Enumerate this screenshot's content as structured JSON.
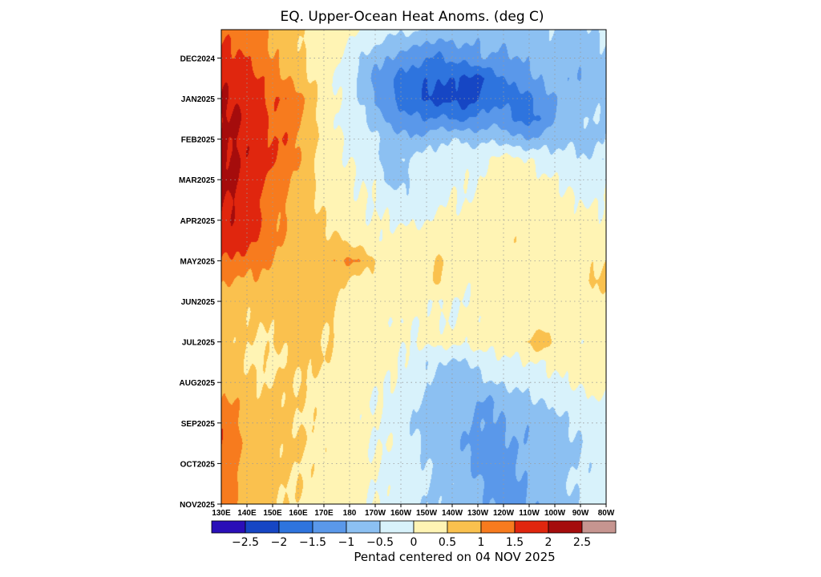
{
  "chart_data": {
    "type": "heatmap",
    "title": "EQ. Upper-Ocean Heat Anoms. (deg C)",
    "xlabel": "",
    "ylabel": "",
    "x_ticks": [
      "130E",
      "140E",
      "150E",
      "160E",
      "170E",
      "180",
      "170W",
      "160W",
      "150W",
      "140W",
      "130W",
      "120W",
      "110W",
      "100W",
      "90W",
      "80W"
    ],
    "y_ticks": [
      "DEC2024",
      "JAN2025",
      "FEB2025",
      "MAR2025",
      "APR2025",
      "MAY2025",
      "JUN2025",
      "JUL2025",
      "AUG2025",
      "SEP2025",
      "OCT2025",
      "NOV2025"
    ],
    "colorbar": {
      "levels": [
        -2.5,
        -2,
        -1.5,
        -1,
        -0.5,
        0,
        0.5,
        1,
        1.5,
        2,
        2.5
      ],
      "labels": [
        "-2.5",
        "-2",
        "-1.5",
        "-1",
        "-0.5",
        "0",
        "0.5",
        "1",
        "1.5",
        "2",
        "2.5"
      ],
      "colors": [
        "#2a0fb8",
        "#1646c4",
        "#2e74de",
        "#5a98ea",
        "#8cc0f2",
        "#d8f2fb",
        "#fff4b4",
        "#fac14e",
        "#f77b1e",
        "#e0260e",
        "#a50c0c",
        "#c69590"
      ]
    },
    "footnote": "Pentad centered on 04 NOV 2025",
    "grid": true,
    "data": {
      "lon_nodes": [
        130,
        135,
        140,
        145,
        150,
        155,
        160,
        165,
        170,
        175,
        180,
        185,
        190,
        195,
        200,
        205,
        210,
        215,
        220,
        225,
        230,
        235,
        240,
        245,
        250,
        255,
        260,
        265,
        270,
        275,
        280
      ],
      "time_nodes_months_since_dec2024": [
        -0.7,
        0,
        0.5,
        1,
        1.5,
        2,
        2.5,
        3,
        3.5,
        4,
        4.5,
        5,
        5.5,
        6,
        6.5,
        7,
        7.5,
        8,
        8.5,
        9,
        9.5,
        10,
        10.5,
        11
      ],
      "anomalies": [
        [
          1.3,
          1.4,
          1.3,
          1.1,
          0.9,
          0.8,
          0.6,
          0.4,
          0.3,
          0.2,
          0.1,
          0.0,
          -0.1,
          -0.3,
          -0.4,
          -0.4,
          -0.6,
          -0.7,
          -0.6,
          -0.7,
          -0.8,
          -0.7,
          -0.6,
          -0.6,
          -0.7,
          -0.6,
          -0.5,
          -0.7,
          -0.7,
          -0.5,
          -0.4
        ],
        [
          1.7,
          1.6,
          1.5,
          1.2,
          1.0,
          0.8,
          0.6,
          0.3,
          0.2,
          0.1,
          -0.3,
          -0.6,
          -0.8,
          -1.0,
          -1.2,
          -1.3,
          -1.5,
          -1.6,
          -1.4,
          -1.3,
          -1.1,
          -1.0,
          -1.2,
          -1.0,
          -0.9,
          -0.8,
          -0.7,
          -0.9,
          -0.8,
          -0.7,
          -0.6
        ],
        [
          1.9,
          1.9,
          1.7,
          1.5,
          1.2,
          1.0,
          0.8,
          0.5,
          0.2,
          0.0,
          -0.3,
          -0.7,
          -1.1,
          -1.4,
          -1.6,
          -1.8,
          -1.9,
          -2.0,
          -1.9,
          -2.1,
          -2.2,
          -1.8,
          -1.5,
          -1.3,
          -1.1,
          -0.9,
          -0.8,
          -0.9,
          -1.0,
          -0.8,
          -0.7
        ],
        [
          2.0,
          2.0,
          1.8,
          1.6,
          1.4,
          1.5,
          1.2,
          0.7,
          0.3,
          0.0,
          -0.2,
          -0.6,
          -1.0,
          -1.4,
          -1.7,
          -1.9,
          -2.1,
          -2.2,
          -2.1,
          -2.3,
          -2.0,
          -1.7,
          -1.6,
          -1.8,
          -1.6,
          -1.3,
          -1.0,
          -0.8,
          -0.8,
          -0.7,
          -0.6
        ],
        [
          2.0,
          2.1,
          1.9,
          1.7,
          1.4,
          1.3,
          1.0,
          0.6,
          0.3,
          0.0,
          -0.2,
          -0.4,
          -0.8,
          -1.1,
          -1.3,
          -1.4,
          -1.5,
          -1.4,
          -1.5,
          -1.6,
          -1.4,
          -1.2,
          -1.3,
          -1.5,
          -1.8,
          -1.4,
          -1.0,
          -0.7,
          -0.6,
          -0.5,
          -0.5
        ],
        [
          2.0,
          2.0,
          1.9,
          1.8,
          1.5,
          1.5,
          1.0,
          0.7,
          0.4,
          0.1,
          -0.1,
          -0.2,
          -0.4,
          -0.7,
          -0.9,
          -0.9,
          -0.8,
          -0.6,
          -0.5,
          -0.6,
          -0.7,
          -0.6,
          -0.7,
          -0.9,
          -1.0,
          -0.8,
          -0.7,
          -0.6,
          -0.7,
          -0.6,
          -0.5
        ],
        [
          2.1,
          2.1,
          1.9,
          1.8,
          1.5,
          1.3,
          1.0,
          0.6,
          0.3,
          0.1,
          0.0,
          -0.1,
          -0.4,
          -0.7,
          -0.5,
          -0.4,
          -0.3,
          -0.2,
          -0.2,
          -0.1,
          -0.2,
          0.1,
          0.2,
          0.1,
          0.0,
          -0.2,
          -0.3,
          -0.3,
          -0.4,
          -0.5,
          -0.4
        ],
        [
          2.0,
          2.1,
          1.9,
          1.7,
          1.3,
          1.1,
          0.8,
          0.5,
          0.4,
          0.3,
          0.1,
          0.0,
          -0.1,
          -0.6,
          -0.7,
          -0.4,
          -0.3,
          -0.2,
          -0.1,
          -0.1,
          0.0,
          0.2,
          0.3,
          0.3,
          0.2,
          0.1,
          0.0,
          -0.1,
          -0.2,
          -0.2,
          -0.1
        ],
        [
          2.0,
          2.0,
          1.8,
          1.5,
          1.2,
          1.0,
          0.8,
          0.6,
          0.4,
          0.3,
          0.1,
          0.0,
          0.0,
          -0.2,
          -0.4,
          -0.3,
          -0.2,
          -0.1,
          0.0,
          0.0,
          0.1,
          0.2,
          0.3,
          0.3,
          0.2,
          0.2,
          0.1,
          0.1,
          0.0,
          -0.1,
          0.0
        ],
        [
          2.0,
          1.9,
          1.7,
          1.5,
          1.2,
          1.0,
          0.8,
          0.7,
          0.5,
          0.3,
          0.2,
          0.1,
          0.0,
          0.0,
          -0.1,
          -0.1,
          0.0,
          0.1,
          0.1,
          0.2,
          0.2,
          0.3,
          0.4,
          0.3,
          0.3,
          0.2,
          0.2,
          0.1,
          0.2,
          0.1,
          0.1
        ],
        [
          1.8,
          1.8,
          1.6,
          1.4,
          1.1,
          0.9,
          0.8,
          0.7,
          0.6,
          0.6,
          0.4,
          0.2,
          0.1,
          0.1,
          0.2,
          0.3,
          0.3,
          0.2,
          0.2,
          0.2,
          0.3,
          0.3,
          0.4,
          0.4,
          0.3,
          0.2,
          0.2,
          0.2,
          0.3,
          0.2,
          0.2
        ],
        [
          1.5,
          1.4,
          1.3,
          1.1,
          1.0,
          0.8,
          0.7,
          0.7,
          0.8,
          1.0,
          1.1,
          0.9,
          0.5,
          0.3,
          0.2,
          0.2,
          0.3,
          0.6,
          0.3,
          0.3,
          0.4,
          0.3,
          0.3,
          0.3,
          0.3,
          0.2,
          0.2,
          0.1,
          0.2,
          0.4,
          0.5
        ],
        [
          1.0,
          1.0,
          0.9,
          0.9,
          0.8,
          0.7,
          0.8,
          0.9,
          0.8,
          0.6,
          0.4,
          0.3,
          0.3,
          0.3,
          0.2,
          0.2,
          0.3,
          0.6,
          0.2,
          0.1,
          0.1,
          0.2,
          0.3,
          0.2,
          0.2,
          0.1,
          0.1,
          0.2,
          0.4,
          0.6,
          0.6
        ],
        [
          0.8,
          0.8,
          0.6,
          0.6,
          0.7,
          0.7,
          0.8,
          0.8,
          0.7,
          0.5,
          0.3,
          0.2,
          0.1,
          0.2,
          0.2,
          0.2,
          0.1,
          0.0,
          0.0,
          0.0,
          0.1,
          0.1,
          0.2,
          0.2,
          0.2,
          0.2,
          0.2,
          0.3,
          0.3,
          0.3,
          0.3
        ],
        [
          0.9,
          0.7,
          0.6,
          0.5,
          0.6,
          0.7,
          0.8,
          0.7,
          0.6,
          0.5,
          0.3,
          0.2,
          0.2,
          0.1,
          0.0,
          0.0,
          0.1,
          0.0,
          0.0,
          0.1,
          0.1,
          0.2,
          0.2,
          0.3,
          0.3,
          0.2,
          0.1,
          0.1,
          0.2,
          0.2,
          0.2
        ],
        [
          0.8,
          0.6,
          0.5,
          0.4,
          0.5,
          0.6,
          0.7,
          0.7,
          0.5,
          0.4,
          0.3,
          0.3,
          0.3,
          0.2,
          0.1,
          0.0,
          0.1,
          0.2,
          0.1,
          0.1,
          0.2,
          0.2,
          0.2,
          0.3,
          0.6,
          0.9,
          0.4,
          0.2,
          0.1,
          0.1,
          0.1
        ],
        [
          0.9,
          0.7,
          0.5,
          0.4,
          0.4,
          0.5,
          0.6,
          0.6,
          0.5,
          0.4,
          0.4,
          0.3,
          0.3,
          0.2,
          0.0,
          -0.2,
          -0.4,
          -0.5,
          -0.5,
          -0.6,
          -0.3,
          -0.2,
          -0.1,
          -0.1,
          0.0,
          0.0,
          0.1,
          0.2,
          0.3,
          0.3,
          0.3
        ],
        [
          0.9,
          0.8,
          0.6,
          0.5,
          0.5,
          0.6,
          0.5,
          0.4,
          0.3,
          0.3,
          0.2,
          0.2,
          0.1,
          0.0,
          -0.1,
          -0.3,
          -0.5,
          -0.7,
          -0.8,
          -0.9,
          -0.7,
          -0.5,
          -0.4,
          -0.4,
          -0.3,
          -0.2,
          -0.1,
          0.0,
          0.1,
          0.2,
          0.1
        ],
        [
          1.1,
          1.0,
          0.8,
          0.6,
          0.6,
          0.6,
          0.5,
          0.5,
          0.4,
          0.3,
          0.2,
          0.1,
          0.0,
          -0.1,
          -0.3,
          -0.5,
          -0.5,
          -0.6,
          -0.7,
          -0.8,
          -1.0,
          -1.1,
          -0.9,
          -0.7,
          -0.6,
          -0.5,
          -0.4,
          -0.3,
          -0.2,
          -0.1,
          0.0
        ],
        [
          1.4,
          1.1,
          0.8,
          0.7,
          0.6,
          0.6,
          0.5,
          0.4,
          0.3,
          0.2,
          0.2,
          0.1,
          0.0,
          -0.1,
          -0.3,
          -0.5,
          -0.7,
          -0.8,
          -0.8,
          -0.9,
          -1.0,
          -1.1,
          -1.0,
          -0.9,
          -0.9,
          -0.8,
          -0.7,
          -0.5,
          -0.4,
          -0.3,
          -0.2
        ],
        [
          1.5,
          1.2,
          0.9,
          0.7,
          0.6,
          0.6,
          0.6,
          0.5,
          0.4,
          0.3,
          0.2,
          0.1,
          0.0,
          0.0,
          -0.2,
          -0.4,
          -0.6,
          -0.7,
          -0.8,
          -1.0,
          -1.2,
          -1.3,
          -1.1,
          -1.0,
          -0.9,
          -0.8,
          -0.7,
          -0.6,
          -0.5,
          -0.4,
          -0.3
        ],
        [
          1.4,
          1.1,
          0.9,
          0.8,
          0.6,
          0.6,
          0.5,
          0.4,
          0.4,
          0.3,
          0.2,
          0.1,
          0.0,
          -0.1,
          -0.2,
          -0.3,
          -0.5,
          -0.6,
          -0.7,
          -0.9,
          -1.2,
          -1.4,
          -1.2,
          -1.0,
          -0.9,
          -0.8,
          -0.7,
          -0.6,
          -0.5,
          -0.4,
          -0.3
        ],
        [
          1.3,
          1.1,
          0.8,
          0.7,
          0.6,
          0.5,
          0.5,
          0.4,
          0.3,
          0.2,
          0.2,
          0.1,
          0.0,
          -0.1,
          -0.2,
          -0.3,
          -0.5,
          -0.6,
          -0.6,
          -0.7,
          -0.9,
          -1.1,
          -1.2,
          -1.1,
          -0.9,
          -0.8,
          -0.7,
          -0.5,
          -0.4,
          -0.3,
          -0.2
        ],
        [
          1.3,
          1.0,
          0.8,
          0.7,
          0.6,
          0.5,
          0.4,
          0.4,
          0.3,
          0.2,
          0.2,
          0.1,
          0.0,
          -0.1,
          -0.2,
          -0.3,
          -0.5,
          -0.6,
          -0.7,
          -0.8,
          -0.9,
          -1.0,
          -1.1,
          -1.1,
          -1.0,
          -0.9,
          -0.8,
          -0.6,
          -0.5,
          -0.4,
          -0.3
        ]
      ]
    }
  }
}
